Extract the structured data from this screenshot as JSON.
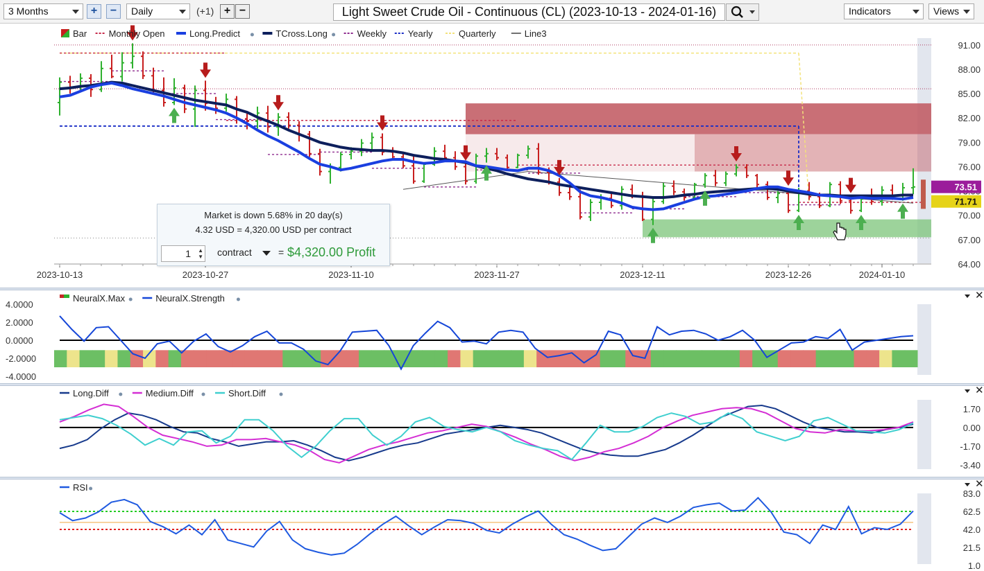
{
  "toolbar": {
    "range": "3 Months",
    "interval": "Daily",
    "offset_label": "(+1)",
    "title": "Light Sweet Crude Oil - Continuous (CL) (2023-10-13 - 2024-01-16)",
    "indicators_label": "Indicators",
    "views_label": "Views",
    "zoom_in_icon": "plus-icon",
    "zoom_out_icon": "minus-icon",
    "search_icon": "magnifier-icon"
  },
  "info_box": {
    "line1": "Market is down 5.68% in 20 day(s)",
    "line2": "4.32 USD = 4,320.00 USD per contract",
    "quantity": "1",
    "unit": "contract",
    "equals": "=",
    "profit": "$4,320.00 Profit"
  },
  "colors": {
    "long_predict": "#1a3fe0",
    "tcross_long": "#0d1f5c",
    "up_bar": "#2fb12f",
    "down_bar": "#c81e1e",
    "up_arrow": "#4caf50",
    "down_arrow": "#b71c1c",
    "resistance_zone": "#c0565e",
    "support_zone": "#7cc47a",
    "price_tag_1": "#9b1d9b",
    "price_tag_2": "#e6d318",
    "neural_strength": "#1546d8",
    "long_diff": "#173a8c",
    "medium_diff": "#d42ed4",
    "short_diff": "#3fcfcf",
    "rsi": "#1f5ae0"
  },
  "chart_data": [
    {
      "type": "bar",
      "name": "price",
      "legend": [
        "Bar",
        "Monthly Open",
        "Long.Predict",
        "TCross.Long",
        "Weekly",
        "Yearly",
        "Quarterly",
        "Line3"
      ],
      "x_ticks": [
        "2023-10-13",
        "2023-10-27",
        "2023-11-10",
        "2023-11-27",
        "2023-12-11",
        "2023-12-26",
        "2024-01-10"
      ],
      "y_ticks": [
        "91.00",
        "88.00",
        "85.00",
        "82.00",
        "79.00",
        "76.00",
        "73.00",
        "70.00",
        "67.00",
        "64.00"
      ],
      "ylim": [
        64,
        91.5
      ],
      "price_tags": [
        "73.51",
        "71.71"
      ],
      "ohlc": [
        [
          83.9,
          87.0,
          82.3,
          86.4
        ],
        [
          86.4,
          87.2,
          85.0,
          85.8
        ],
        [
          85.8,
          87.5,
          85.4,
          86.9
        ],
        [
          86.9,
          87.4,
          84.6,
          85.5
        ],
        [
          85.5,
          89.0,
          85.2,
          88.1
        ],
        [
          88.1,
          89.8,
          86.9,
          87.1
        ],
        [
          87.1,
          90.1,
          86.5,
          88.8
        ],
        [
          88.8,
          91.2,
          88.1,
          89.6
        ],
        [
          89.6,
          90.2,
          86.8,
          87.2
        ],
        [
          87.2,
          88.2,
          84.9,
          85.4
        ],
        [
          85.4,
          87.0,
          83.4,
          83.9
        ],
        [
          83.9,
          86.9,
          83.6,
          85.7
        ],
        [
          85.7,
          86.1,
          82.6,
          83.1
        ],
        [
          83.1,
          86.0,
          80.9,
          85.4
        ],
        [
          85.4,
          86.6,
          82.9,
          83.8
        ],
        [
          83.8,
          84.6,
          82.5,
          83.2
        ],
        [
          83.2,
          85.0,
          82.8,
          84.3
        ],
        [
          84.3,
          84.7,
          81.3,
          81.9
        ],
        [
          81.9,
          82.6,
          80.6,
          81.6
        ],
        [
          81.6,
          83.4,
          80.7,
          82.6
        ],
        [
          82.6,
          83.5,
          80.2,
          80.9
        ],
        [
          80.9,
          82.6,
          79.8,
          82.1
        ],
        [
          82.1,
          82.7,
          80.7,
          81.1
        ],
        [
          81.1,
          81.6,
          79.1,
          80.0
        ],
        [
          80.0,
          80.4,
          77.2,
          77.6
        ],
        [
          77.6,
          78.2,
          74.9,
          75.4
        ],
        [
          75.4,
          76.4,
          73.9,
          75.9
        ],
        [
          75.9,
          77.8,
          75.4,
          77.5
        ],
        [
          77.5,
          78.4,
          76.9,
          77.9
        ],
        [
          77.9,
          79.4,
          77.3,
          78.9
        ],
        [
          78.9,
          80.2,
          78.0,
          79.6
        ],
        [
          79.6,
          80.1,
          77.4,
          77.8
        ],
        [
          77.8,
          78.4,
          76.9,
          77.2
        ],
        [
          77.2,
          77.7,
          75.8,
          76.1
        ],
        [
          76.1,
          77.3,
          73.9,
          74.2
        ],
        [
          74.2,
          76.5,
          74.0,
          76.3
        ],
        [
          76.3,
          78.4,
          76.1,
          77.9
        ],
        [
          77.9,
          78.7,
          76.6,
          77.1
        ],
        [
          77.1,
          77.9,
          75.6,
          76.0
        ],
        [
          76.0,
          76.4,
          73.8,
          74.2
        ],
        [
          74.2,
          77.6,
          73.9,
          77.3
        ],
        [
          77.3,
          78.3,
          76.5,
          77.6
        ],
        [
          77.6,
          78.3,
          76.8,
          77.1
        ],
        [
          77.1,
          77.5,
          75.6,
          75.9
        ],
        [
          75.9,
          77.6,
          75.8,
          77.4
        ],
        [
          77.4,
          78.6,
          77.0,
          78.2
        ],
        [
          78.2,
          78.9,
          75.0,
          75.3
        ],
        [
          75.3,
          75.9,
          73.8,
          74.1
        ],
        [
          74.1,
          74.6,
          72.4,
          72.8
        ],
        [
          72.8,
          73.6,
          71.9,
          72.3
        ],
        [
          72.3,
          73.2,
          69.5,
          69.8
        ],
        [
          69.8,
          72.0,
          69.3,
          71.6
        ],
        [
          71.6,
          72.6,
          70.7,
          72.1
        ],
        [
          72.1,
          72.7,
          70.9,
          71.2
        ],
        [
          71.2,
          73.6,
          70.7,
          73.2
        ],
        [
          73.2,
          73.8,
          72.1,
          72.4
        ],
        [
          72.4,
          72.9,
          69.3,
          69.5
        ],
        [
          69.5,
          72.1,
          68.8,
          71.7
        ],
        [
          71.7,
          74.0,
          71.4,
          73.6
        ],
        [
          73.6,
          74.3,
          72.5,
          72.9
        ],
        [
          72.9,
          73.3,
          71.8,
          72.2
        ],
        [
          72.2,
          74.0,
          72.0,
          73.8
        ],
        [
          73.8,
          75.2,
          73.4,
          74.9
        ],
        [
          74.9,
          75.6,
          73.6,
          74.0
        ],
        [
          74.0,
          75.4,
          73.6,
          75.1
        ],
        [
          75.1,
          76.3,
          74.8,
          75.9
        ],
        [
          75.9,
          76.3,
          74.6,
          74.9
        ],
        [
          74.9,
          75.1,
          73.4,
          73.8
        ],
        [
          73.8,
          74.2,
          71.9,
          72.2
        ],
        [
          72.2,
          73.0,
          71.5,
          72.7
        ],
        [
          72.7,
          73.3,
          70.3,
          70.6
        ],
        [
          70.6,
          73.4,
          70.4,
          73.0
        ],
        [
          73.0,
          74.1,
          71.9,
          72.3
        ],
        [
          72.3,
          72.8,
          70.9,
          71.2
        ],
        [
          71.2,
          74.1,
          71.0,
          73.8
        ],
        [
          73.8,
          74.2,
          71.4,
          71.8
        ],
        [
          71.8,
          72.4,
          70.2,
          70.6
        ],
        [
          70.6,
          72.4,
          70.4,
          72.0
        ],
        [
          72.0,
          73.3,
          71.3,
          71.7
        ],
        [
          71.7,
          73.6,
          71.2,
          73.1
        ],
        [
          73.1,
          73.8,
          71.9,
          72.4
        ],
        [
          72.4,
          74.0,
          71.8,
          73.4
        ],
        [
          73.4,
          75.8,
          72.6,
          73.5
        ]
      ],
      "long_predict": [
        84.6,
        84.8,
        85.3,
        85.8,
        86.1,
        86.3,
        86.0,
        85.6,
        85.3,
        85.0,
        84.7,
        84.3,
        83.9,
        83.6,
        83.3,
        83.0,
        82.6,
        82.0,
        81.3,
        80.5,
        79.8,
        79.2,
        78.5,
        77.8,
        77.0,
        76.3,
        76.0,
        75.6,
        75.8,
        76.1,
        76.4,
        76.7,
        76.9,
        76.9,
        76.6,
        76.4,
        76.5,
        76.7,
        76.7,
        76.6,
        76.1,
        76.0,
        75.8,
        75.6,
        75.5,
        75.8,
        75.8,
        75.5,
        74.9,
        74.0,
        72.9,
        72.4,
        72.2,
        71.9,
        71.5,
        71.0,
        70.8,
        70.7,
        70.8,
        71.2,
        71.6,
        72.0,
        72.3,
        72.4,
        72.6,
        72.8,
        73.0,
        73.3,
        73.5,
        73.5,
        73.2,
        73.0,
        72.8,
        72.5,
        72.4,
        72.3,
        72.1,
        72.2,
        72.1,
        72.1,
        72.1,
        72.0,
        72.2
      ],
      "tcross_long": [
        85.6,
        85.7,
        85.9,
        86.0,
        86.2,
        86.4,
        86.3,
        86.0,
        85.7,
        85.4,
        85.1,
        84.8,
        84.5,
        84.2,
        84.0,
        83.8,
        83.6,
        83.1,
        82.7,
        82.1,
        81.6,
        81.1,
        80.5,
        80.0,
        79.5,
        79.0,
        78.7,
        78.4,
        78.2,
        78.1,
        78.0,
        78.0,
        77.9,
        77.7,
        77.4,
        77.2,
        77.0,
        76.9,
        76.7,
        76.5,
        76.1,
        75.8,
        75.5,
        75.1,
        74.8,
        74.5,
        74.3,
        74.1,
        73.8,
        73.6,
        73.4,
        73.2,
        73.0,
        72.8,
        72.6,
        72.4,
        72.3,
        72.2,
        72.2,
        72.3,
        72.5,
        72.6,
        72.8,
        72.9,
        73.0,
        73.1,
        73.2,
        73.3,
        73.3,
        73.2,
        73.0,
        72.8,
        72.6,
        72.5,
        72.5,
        72.4,
        72.4,
        72.4,
        72.4,
        72.4,
        72.4,
        72.5,
        72.5
      ],
      "yearly_level": 81.0,
      "monthly_open_levels": [
        90.0,
        81.7,
        76.2,
        71.6
      ],
      "quarterly_level": 90.0,
      "support_zone": [
        67.3,
        69.5
      ],
      "resistance_zone": [
        75.4,
        83.8
      ]
    },
    {
      "type": "line",
      "name": "NeuralX",
      "legend": [
        "NeuralX.Max",
        "NeuralX.Strength"
      ],
      "y_ticks": [
        "4.0000",
        "2.0000",
        "0.0000",
        "-2.0000",
        "-4.0000"
      ],
      "ylim": [
        -4,
        4
      ],
      "strength": [
        2.7,
        1.2,
        -0.1,
        1.4,
        1.5,
        0.0,
        -1.5,
        -2.0,
        -0.4,
        -0.1,
        -1.4,
        -0.1,
        0.7,
        -0.7,
        -1.3,
        -0.6,
        0.4,
        1.0,
        -0.3,
        -0.3,
        -1.0,
        -2.3,
        -2.7,
        -1.2,
        0.9,
        1.0,
        1.1,
        -0.6,
        -3.2,
        -0.6,
        0.8,
        2.1,
        1.4,
        -0.2,
        -0.1,
        -0.4,
        0.9,
        1.1,
        0.9,
        -0.9,
        -1.9,
        -1.7,
        -1.4,
        -2.5,
        -1.6,
        1.0,
        0.6,
        -1.7,
        -2.0,
        1.5,
        0.6,
        1.0,
        1.1,
        0.7,
        0.0,
        0.4,
        1.1,
        0.0,
        -1.9,
        -1.1,
        -0.3,
        -0.2,
        0.4,
        0.2,
        1.2,
        -1.1,
        -0.2,
        0.0,
        0.2,
        0.4,
        0.5
      ],
      "max_states": [
        "g",
        "y",
        "g",
        "g",
        "y",
        "g",
        "r",
        "y",
        "r",
        "g",
        "r",
        "r",
        "r",
        "r",
        "r",
        "r",
        "r",
        "r",
        "g",
        "g",
        "g",
        "r",
        "r",
        "r",
        "g",
        "g",
        "g",
        "g",
        "g",
        "g",
        "g",
        "r",
        "y",
        "g",
        "g",
        "g",
        "g",
        "y",
        "r",
        "r",
        "r",
        "r",
        "r",
        "g",
        "g",
        "r",
        "r",
        "g",
        "g",
        "g",
        "g",
        "g",
        "g",
        "g",
        "r",
        "g",
        "g",
        "r",
        "r",
        "r",
        "g",
        "g",
        "g",
        "r",
        "r",
        "y",
        "g",
        "g"
      ]
    },
    {
      "type": "line",
      "name": "Diff",
      "legend": [
        "Long.Diff",
        "Medium.Diff",
        "Short.Diff"
      ],
      "y_ticks": [
        "1.70",
        "0.00",
        "-1.70",
        "-3.40"
      ],
      "ylim": [
        -3.9,
        2.5
      ],
      "long_diff": [
        -1.9,
        -1.6,
        -1.1,
        -0.1,
        0.7,
        1.3,
        1.1,
        0.7,
        0.1,
        -0.4,
        -0.5,
        -1.0,
        -1.3,
        -1.7,
        -1.5,
        -1.3,
        -1.3,
        -1.2,
        -1.6,
        -2.1,
        -2.7,
        -3.0,
        -2.7,
        -2.3,
        -1.9,
        -1.6,
        -1.4,
        -1.0,
        -0.6,
        -0.4,
        -0.2,
        0.0,
        0.2,
        0.0,
        -0.2,
        -0.5,
        -1.0,
        -1.5,
        -2.0,
        -2.3,
        -2.5,
        -2.6,
        -2.6,
        -2.3,
        -2.0,
        -1.4,
        -0.7,
        0.1,
        0.9,
        1.4,
        1.9,
        2.0,
        1.7,
        1.1,
        0.5,
        0.0,
        -0.2,
        -0.4,
        -0.4,
        -0.5,
        -0.2,
        0.0,
        0.3
      ],
      "medium_diff": [
        0.5,
        1.0,
        1.6,
        2.1,
        1.9,
        1.0,
        0.0,
        -0.7,
        -1.0,
        -1.3,
        -1.7,
        -1.6,
        -1.1,
        -1.1,
        -1.0,
        -1.3,
        -1.6,
        -2.1,
        -2.9,
        -3.2,
        -2.6,
        -2.0,
        -1.6,
        -1.3,
        -0.9,
        -0.5,
        -0.3,
        0.0,
        0.3,
        0.1,
        -0.4,
        -0.9,
        -1.5,
        -2.0,
        -2.6,
        -3.0,
        -2.7,
        -2.2,
        -1.9,
        -1.4,
        -0.8,
        0.0,
        0.6,
        1.1,
        1.4,
        1.7,
        1.8,
        1.7,
        1.3,
        0.6,
        -0.1,
        -0.4,
        -0.5,
        -0.2,
        -0.3,
        -0.3,
        -0.2,
        0.0,
        0.5
      ],
      "short_diff": [
        0.7,
        0.9,
        1.1,
        0.8,
        0.2,
        -0.6,
        -1.6,
        -1.0,
        -1.6,
        -0.4,
        -0.3,
        -1.4,
        -0.8,
        0.7,
        0.7,
        -0.3,
        -1.7,
        -2.7,
        -1.7,
        -0.3,
        0.8,
        0.8,
        -0.7,
        -1.6,
        -0.8,
        0.5,
        0.9,
        0.1,
        -0.2,
        -0.4,
        0.0,
        -0.4,
        -1.2,
        -1.6,
        -1.9,
        -2.1,
        -2.9,
        -1.4,
        0.2,
        -0.4,
        -0.4,
        0.1,
        0.9,
        1.3,
        1.0,
        0.3,
        0.5,
        1.3,
        0.8,
        -0.4,
        -0.8,
        -1.2,
        -0.8,
        0.6,
        0.9,
        0.3,
        -0.3,
        -0.4,
        -0.5,
        -0.2,
        0.4
      ]
    },
    {
      "type": "line",
      "name": "RSI",
      "legend": [
        "RSI"
      ],
      "y_ticks": [
        "83.0",
        "62.5",
        "42.0",
        "21.5",
        "1.0"
      ],
      "ylim": [
        1,
        83
      ],
      "overbought": 62.5,
      "midline": 50,
      "oversold": 42,
      "values": [
        61,
        52,
        55,
        62,
        73,
        76,
        70,
        51,
        45,
        37,
        47,
        36,
        53,
        30,
        26,
        22,
        40,
        51,
        30,
        20,
        16,
        13,
        15,
        25,
        37,
        48,
        57,
        46,
        36,
        45,
        53,
        52,
        49,
        41,
        38,
        48,
        56,
        63,
        48,
        36,
        31,
        24,
        18,
        20,
        34,
        48,
        55,
        50,
        57,
        67,
        70,
        72,
        63,
        64,
        78,
        62,
        39,
        36,
        26,
        47,
        42,
        68,
        37,
        44,
        42,
        48,
        63
      ]
    }
  ]
}
